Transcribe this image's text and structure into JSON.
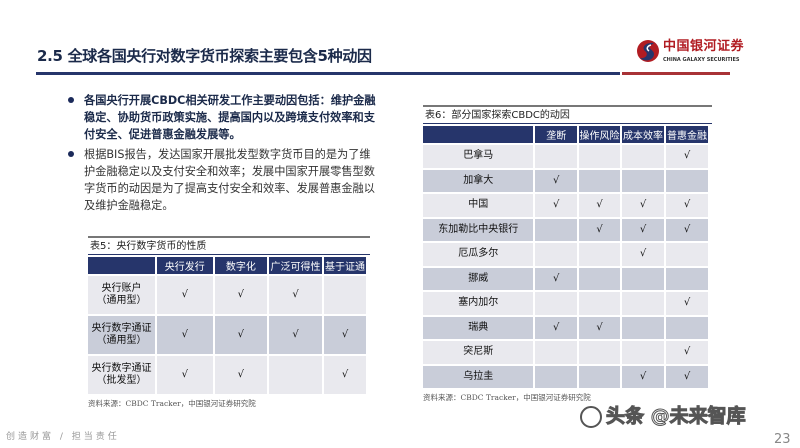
{
  "header": {
    "title": "2.5  全球各国央行对数字货币探索主要包含5种动因",
    "logo_cn": "中国银河证券",
    "logo_en": "CHINA GALAXY SECURITIES",
    "colors": {
      "navy": "#26356b",
      "red": "#a83236"
    }
  },
  "bullets": [
    "各国央行开展CBDC相关研发工作主要动因包括：维护金融稳定、协助货币政策实施、提高国内以及跨境支付效率和支付安全、促进普惠金融发展等。",
    "根据BIS报告，发达国家开展批发型数字货币目的是为了维护金融稳定以及支付安全和效率；发展中国家开展零售型数字货币的动因是为了提高支付安全和效率、发展普惠金融以及维护金融稳定。"
  ],
  "table5": {
    "label": "表5：央行数字货币的性质",
    "columns": [
      "",
      "央行发行",
      "数字化",
      "广泛可得性",
      "基于证通"
    ],
    "rows": [
      {
        "name": "央行账户\n（通用型）",
        "checks": [
          true,
          true,
          true,
          false
        ]
      },
      {
        "name": "央行数字通证\n（通用型）",
        "checks": [
          true,
          true,
          true,
          true
        ]
      },
      {
        "name": "央行数字通证\n（批发型）",
        "checks": [
          true,
          true,
          false,
          true
        ]
      }
    ],
    "source": "资料来源：CBDC Tracker，中国银河证券研究院"
  },
  "table6": {
    "label": "表6：部分国家探索CBDC的动因",
    "columns": [
      "",
      "垄断",
      "操作风险",
      "成本效率",
      "普惠金融"
    ],
    "rows": [
      {
        "name": "巴拿马",
        "checks": [
          false,
          false,
          false,
          true
        ]
      },
      {
        "name": "加拿大",
        "checks": [
          true,
          false,
          false,
          false
        ]
      },
      {
        "name": "中国",
        "checks": [
          true,
          true,
          true,
          true
        ]
      },
      {
        "name": "东加勒比中央银行",
        "checks": [
          false,
          true,
          true,
          true
        ]
      },
      {
        "name": "厄瓜多尔",
        "checks": [
          false,
          false,
          true,
          false
        ]
      },
      {
        "name": "挪威",
        "checks": [
          true,
          false,
          false,
          false
        ]
      },
      {
        "name": "塞内加尔",
        "checks": [
          false,
          false,
          false,
          true
        ]
      },
      {
        "name": "瑞典",
        "checks": [
          true,
          true,
          false,
          false
        ]
      },
      {
        "name": "突尼斯",
        "checks": [
          false,
          false,
          false,
          true
        ]
      },
      {
        "name": "乌拉圭",
        "checks": [
          false,
          false,
          true,
          true
        ]
      }
    ],
    "source": "资料来源：CBDC Tracker，中国银河证券研究院"
  },
  "check_mark": "√",
  "footer": {
    "slogan": "创造财富 / 担当责任",
    "page": "23",
    "watermark": "头条 @未来智库"
  }
}
